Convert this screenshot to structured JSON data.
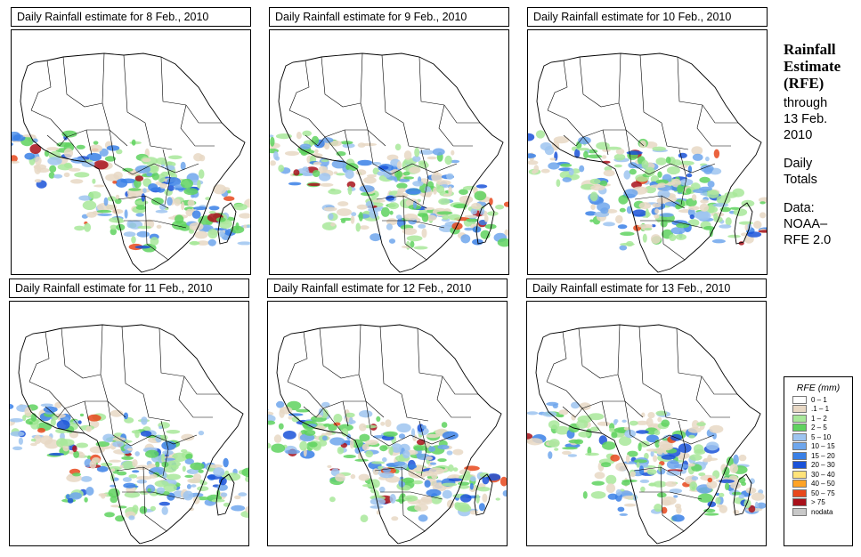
{
  "panels": [
    {
      "title": "Daily Rainfall estimate for  8 Feb., 2010",
      "seed": 11
    },
    {
      "title": "Daily Rainfall estimate for  9 Feb., 2010",
      "seed": 23
    },
    {
      "title": "Daily Rainfall estimate for  10 Feb., 2010",
      "seed": 37
    },
    {
      "title": "Daily Rainfall estimate for  11 Feb., 2010",
      "seed": 41
    },
    {
      "title": "Daily Rainfall estimate for  12 Feb., 2010",
      "seed": 53
    },
    {
      "title": "Daily Rainfall estimate for  13 Feb., 2010",
      "seed": 67
    }
  ],
  "side": {
    "title_line1": "Rainfall",
    "title_line2": "Estimate",
    "title_line3": "(RFE)",
    "through_label": "through",
    "date_line1": "13 Feb.",
    "date_line2": "2010",
    "totals_line1": "Daily",
    "totals_line2": "Totals",
    "data_line1": "Data:",
    "data_line2": "NOAA–",
    "data_line3": "RFE 2.0"
  },
  "legend": {
    "title": "RFE (mm)",
    "items": [
      {
        "label": "0 – 1",
        "color": "#ffffff"
      },
      {
        "label": ".1 – 1",
        "color": "#e8d8c4"
      },
      {
        "label": "1 – 2",
        "color": "#a8e89a"
      },
      {
        "label": "2 – 5",
        "color": "#5fd25f"
      },
      {
        "label": "5 – 10",
        "color": "#9ec4f0"
      },
      {
        "label": "10 – 15",
        "color": "#6ea6ec"
      },
      {
        "label": "15 – 20",
        "color": "#3a80e6"
      },
      {
        "label": "20 – 30",
        "color": "#1a52d8"
      },
      {
        "label": "30 – 40",
        "color": "#ffe37a"
      },
      {
        "label": "40 – 50",
        "color": "#ffa326"
      },
      {
        "label": "50 – 75",
        "color": "#e8481c"
      },
      {
        "label": "> 75",
        "color": "#a8101a"
      },
      {
        "label": "nodata",
        "color": "#c8c8c8"
      }
    ]
  }
}
